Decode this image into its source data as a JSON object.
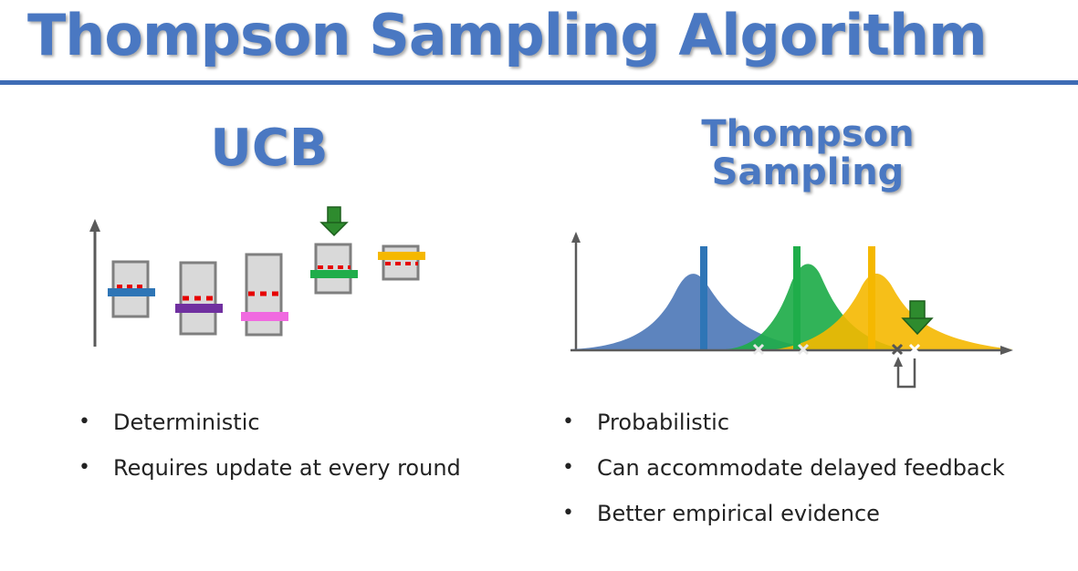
{
  "title": "Thompson Sampling Algorithm",
  "ucb": {
    "heading": "UCB",
    "bullets": [
      "Deterministic",
      "Requires update at every round"
    ]
  },
  "thompson": {
    "heading_line1": "Thompson",
    "heading_line2": "Sampling",
    "bullets": [
      "Probabilistic",
      "Can accommodate delayed feedback",
      "Better empirical evidence"
    ]
  },
  "colors": {
    "title": "#4a78c2",
    "rule": "#3e6cb5",
    "blue": "#4f79b8",
    "green": "#1fad4a",
    "yellow": "#f5b800",
    "purple": "#7030a0",
    "pink": "#f06ae0",
    "red_dash": "#e60000",
    "arrow_green": "#2e8b2e"
  },
  "icons": [
    "down-arrow-icon",
    "sample-marker-icon",
    "feedback-loop-arrow-icon"
  ]
}
